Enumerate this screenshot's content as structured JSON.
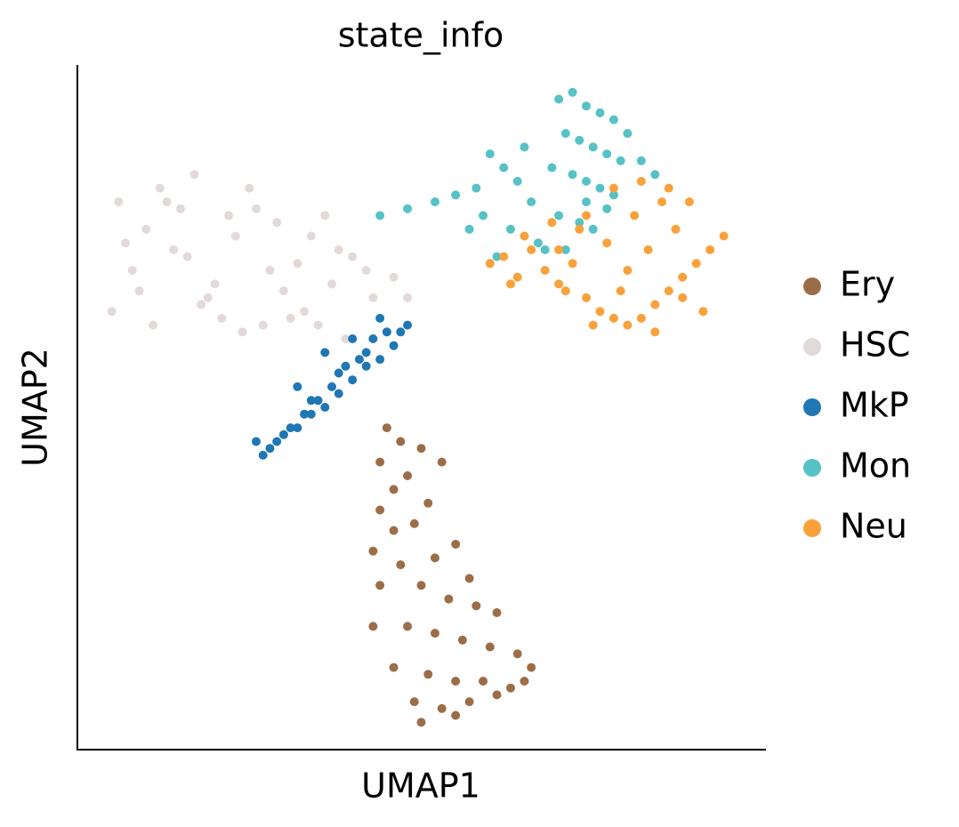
{
  "chart_data": {
    "type": "scatter",
    "title": "state_info",
    "x_label": "UMAP1",
    "y_label": "UMAP2",
    "xlim": [
      0,
      100
    ],
    "ylim": [
      0,
      100
    ],
    "legend": "right",
    "series": [
      {
        "name": "Ery",
        "color": "#9b6e47",
        "x": [
          45,
          47,
          44,
          50,
          53,
          46,
          48,
          44,
          51,
          46,
          49,
          43,
          55,
          52,
          47,
          57,
          44,
          50,
          54,
          58,
          61,
          43,
          48,
          52,
          56,
          60,
          64,
          66,
          46,
          51,
          55,
          59,
          63,
          49,
          53,
          57,
          61,
          65,
          50,
          55
        ],
        "y": [
          47,
          45,
          42,
          44,
          42,
          38,
          40,
          35,
          36,
          32,
          33,
          29,
          30,
          28,
          27,
          25,
          24,
          24,
          22,
          21,
          20,
          18,
          18,
          17,
          16,
          15,
          14,
          12,
          12,
          11,
          10,
          10,
          9,
          7,
          6,
          7,
          8,
          10,
          4,
          5
        ]
      },
      {
        "name": "HSC",
        "color": "#e2dad8",
        "x": [
          5,
          8,
          10,
          13,
          16,
          19,
          22,
          25,
          28,
          31,
          34,
          37,
          40,
          43,
          46,
          7,
          11,
          15,
          20,
          24,
          29,
          33,
          38,
          42,
          9,
          14,
          18,
          23,
          27,
          32,
          36,
          12,
          17,
          21,
          26,
          30,
          35,
          6,
          48,
          39
        ],
        "y": [
          64,
          70,
          76,
          80,
          72,
          66,
          78,
          82,
          70,
          63,
          75,
          68,
          72,
          66,
          69,
          74,
          62,
          79,
          68,
          61,
          77,
          64,
          73,
          70,
          67,
          73,
          65,
          75,
          62,
          71,
          78,
          82,
          84,
          63,
          79,
          67,
          62,
          80,
          66,
          60
        ]
      },
      {
        "name": "MkP",
        "color": "#1f77b4",
        "x": [
          26,
          28,
          30,
          32,
          34,
          36,
          38,
          40,
          42,
          44,
          46,
          48,
          27,
          31,
          33,
          35,
          37,
          39,
          41,
          43,
          45,
          29,
          34,
          38,
          42,
          47,
          32,
          36,
          40,
          44
        ],
        "y": [
          45,
          44,
          46,
          47,
          49,
          50,
          52,
          54,
          56,
          57,
          59,
          62,
          43,
          47,
          49,
          51,
          53,
          56,
          57,
          60,
          61,
          45,
          51,
          55,
          58,
          61,
          53,
          58,
          60,
          63
        ]
      },
      {
        "name": "Mon",
        "color": "#56c2c5",
        "x": [
          70,
          72,
          74,
          76,
          78,
          80,
          71,
          73,
          75,
          77,
          79,
          69,
          72,
          74,
          76,
          78,
          70,
          73,
          75,
          77,
          60,
          62,
          64,
          66,
          58,
          55,
          52,
          48,
          44,
          82,
          84,
          63,
          57,
          61,
          67,
          65,
          68,
          71,
          74,
          59
        ],
        "y": [
          95,
          96,
          94,
          93,
          92,
          90,
          90,
          89,
          88,
          87,
          86,
          85,
          84,
          83,
          82,
          81,
          78,
          77,
          76,
          79,
          87,
          85,
          83,
          80,
          82,
          81,
          80,
          79,
          78,
          86,
          84,
          76,
          76,
          72,
          74,
          88,
          73,
          73,
          80,
          78
        ]
      },
      {
        "name": "Neu",
        "color": "#f9a13a",
        "x": [
          60,
          62,
          64,
          66,
          68,
          70,
          72,
          74,
          76,
          78,
          80,
          82,
          84,
          86,
          88,
          90,
          92,
          94,
          65,
          69,
          73,
          77,
          81,
          85,
          89,
          71,
          75,
          79,
          83,
          87,
          91,
          70,
          74,
          78,
          82,
          86,
          80,
          84,
          88,
          63
        ],
        "y": [
          71,
          72,
          69,
          73,
          70,
          68,
          71,
          66,
          64,
          63,
          62,
          63,
          65,
          67,
          69,
          71,
          73,
          75,
          75,
          77,
          76,
          74,
          78,
          80,
          80,
          67,
          62,
          67,
          73,
          76,
          64,
          73,
          78,
          82,
          83,
          82,
          70,
          61,
          66,
          68
        ]
      }
    ]
  }
}
